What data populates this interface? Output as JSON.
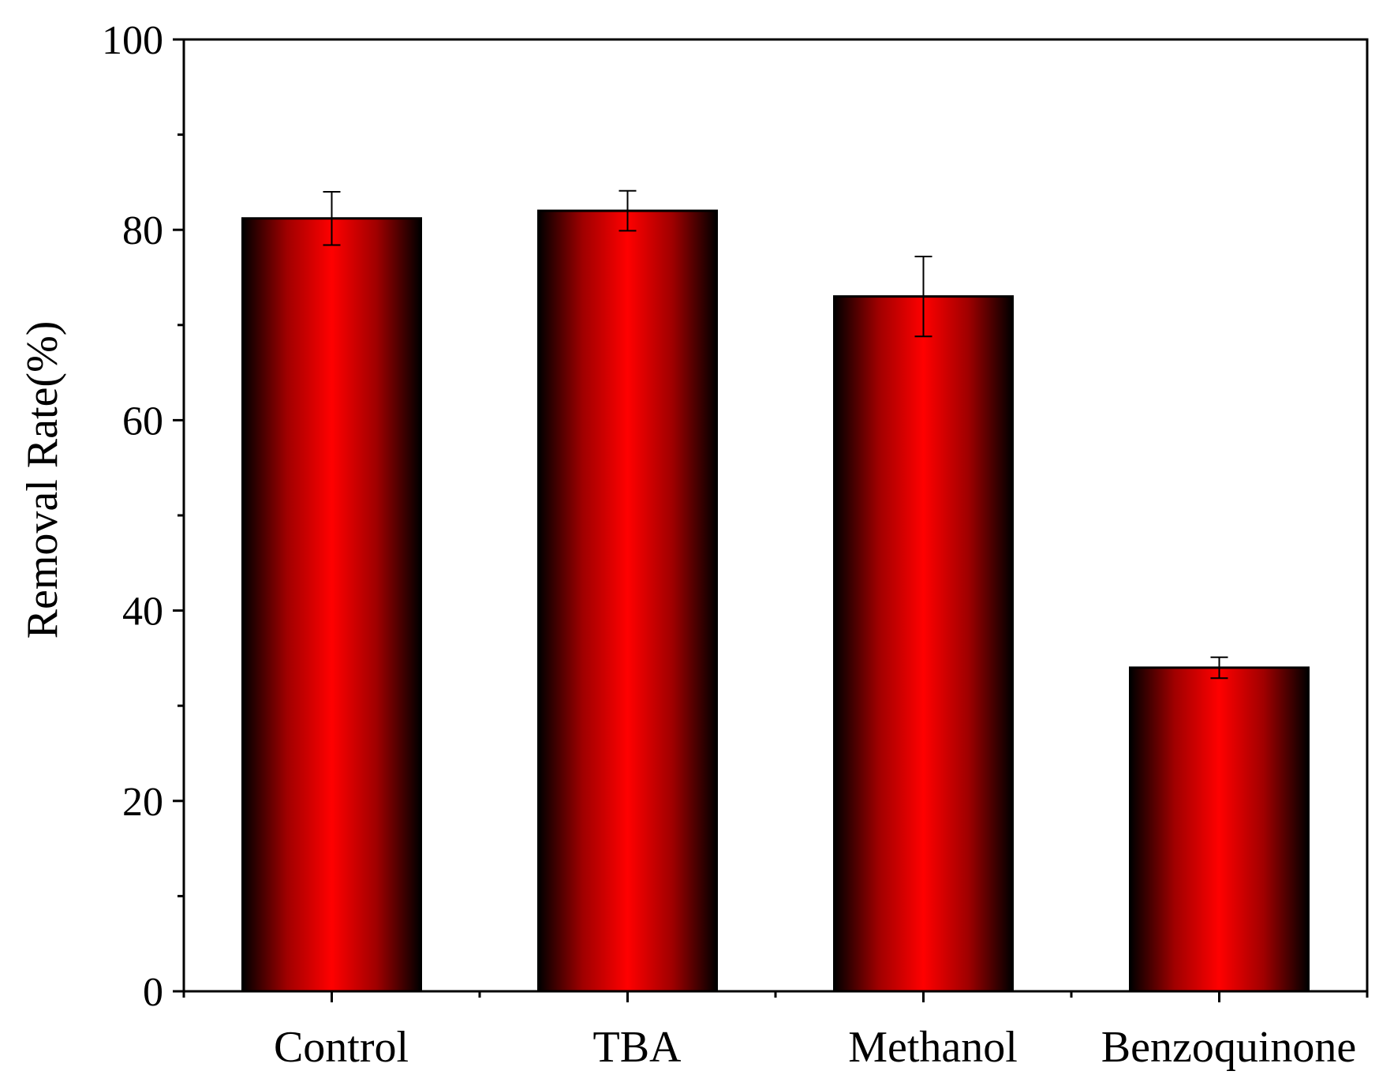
{
  "chart_data": {
    "type": "bar",
    "title": "",
    "xlabel": "",
    "ylabel": "Removal Rate(%)",
    "categories": [
      "Control",
      "TBA",
      "Methanol",
      "Benzoquinone"
    ],
    "values": [
      81.2,
      82.0,
      73.0,
      34.0
    ],
    "errors": [
      2.8,
      2.1,
      4.2,
      1.1
    ],
    "ylim": [
      0,
      100
    ],
    "yticks": [
      0,
      20,
      40,
      60,
      80,
      100
    ],
    "ytick_labels": [
      "0",
      "20",
      "40",
      "60",
      "80",
      "100"
    ],
    "grid": false,
    "legend": "none"
  },
  "colors": {
    "bar_center": "#ff0000",
    "bar_edge": "#000000",
    "axis": "#000000"
  }
}
